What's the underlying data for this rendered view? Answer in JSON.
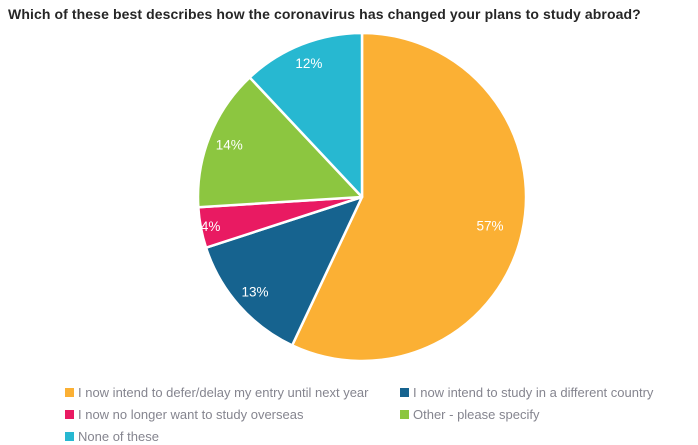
{
  "chart_data": {
    "type": "pie",
    "title": "Which of these best describes how the coronavirus has changed your plans to study abroad?",
    "categories": [
      "I now intend to defer/delay my entry until next year",
      "I now intend to study in a different country",
      "I now no longer want to study overseas",
      "Other - please specify",
      "None of these"
    ],
    "values": [
      57,
      13,
      4,
      14,
      12
    ],
    "unit": "%",
    "data_labels": [
      "57%",
      "13%",
      "4%",
      "14%",
      "12%"
    ],
    "colors": [
      "#FBB034",
      "#16638F",
      "#E91A62",
      "#8CC640",
      "#27B8D1"
    ],
    "start_angle_deg_from_top": 0,
    "direction": "clockwise",
    "legend_position": "bottom",
    "slice_label_color": "#FFFFFF",
    "slice_gap_color": "#FFFFFF",
    "label_radius_factors": [
      0.8,
      0.87,
      0.94,
      0.87,
      0.88
    ],
    "title_color": "#262626",
    "legend_text_color": "#85858F"
  }
}
